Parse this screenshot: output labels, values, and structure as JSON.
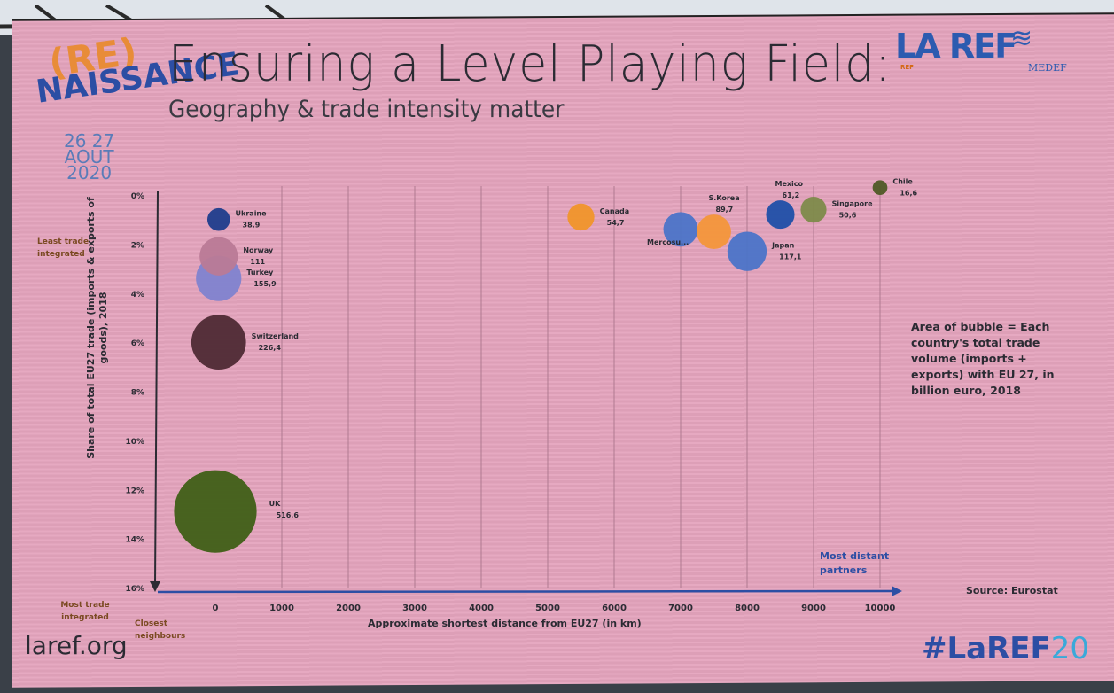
{
  "slide": {
    "title": "Ensuring a Level Playing Field:",
    "subtitle": "Geography & trade intensity matter",
    "logo_left": {
      "re": "(RE)",
      "naissance": "NAISSANCE",
      "dates": "26 27\nAOUT\n2020"
    },
    "logo_right_1": "LA REF",
    "logo_right_1_small": "REF",
    "logo_right_2": "MEDEF",
    "website": "laref.org",
    "hashtag_main": "#LaREF",
    "hashtag_num": "20",
    "note": "Area of bubble = Each country's total trade volume (imports + exports) with EU 27, in billion euro, 2018",
    "source": "Source: Eurostat",
    "least_integrated": "Least trade integrated",
    "most_integrated": "Most trade integrated",
    "closest": "Closest neighbours",
    "most_distant": "Most distant partners"
  },
  "chart_data": {
    "type": "scatter",
    "title": "",
    "xlabel": "Approximate shortest distance from EU27 (in km)",
    "ylabel": "Share of total EU27 trade (imports & exports of goods), 2018",
    "xlim": [
      -900,
      10200
    ],
    "ylim": [
      0,
      16
    ],
    "y_inverted": true,
    "x_ticks": [
      "0",
      "1000",
      "2000",
      "3000",
      "4000",
      "5000",
      "6000",
      "7000",
      "8000",
      "9000",
      "10000"
    ],
    "y_ticks": [
      "0%",
      "2%",
      "4%",
      "6%",
      "8%",
      "10%",
      "12%",
      "14%",
      "16%"
    ],
    "grid": "vertical",
    "points": [
      {
        "name": "Ukraine",
        "x": 50,
        "y": 1.0,
        "size": "38,9",
        "size_num": 38.9,
        "color": "#1f3d8c",
        "label_pos": "right"
      },
      {
        "name": "Norway",
        "x": 50,
        "y": 2.5,
        "size": "111",
        "size_num": 111,
        "color": "#b97a96",
        "label_pos": "right"
      },
      {
        "name": "Turkey",
        "x": 50,
        "y": 3.4,
        "size": "155,9",
        "size_num": 155.9,
        "color": "#7f83cf",
        "label_pos": "right"
      },
      {
        "name": "Switzerland",
        "x": 50,
        "y": 6.0,
        "size": "226,4",
        "size_num": 226.4,
        "color": "#4e2a34",
        "label_pos": "right"
      },
      {
        "name": "UK",
        "x": 0,
        "y": 12.9,
        "size": "516,6",
        "size_num": 516.6,
        "color": "#3f5f16",
        "label_pos": "right"
      },
      {
        "name": "Canada",
        "x": 5500,
        "y": 0.9,
        "size": "54,7",
        "size_num": 54.7,
        "color": "#f0952a",
        "label_pos": "right"
      },
      {
        "name": "Mercosur",
        "x": 7000,
        "y": 1.4,
        "size": "",
        "size_num": 90.0,
        "color": "#4b74c8",
        "label_pos": "below-left"
      },
      {
        "name": "S.Korea",
        "x": 7500,
        "y": 1.5,
        "size": "89,7",
        "size_num": 89.7,
        "color": "#f3963a",
        "label_pos": "above"
      },
      {
        "name": "Japan",
        "x": 8000,
        "y": 2.3,
        "size": "117,1",
        "size_num": 117.1,
        "color": "#4b74c8",
        "label_pos": "right"
      },
      {
        "name": "Mexico",
        "x": 8500,
        "y": 0.8,
        "size": "61,2",
        "size_num": 61.2,
        "color": "#1f4fa8",
        "label_pos": "above"
      },
      {
        "name": "Singapore",
        "x": 9000,
        "y": 0.6,
        "size": "50,6",
        "size_num": 50.6,
        "color": "#7d8a4a",
        "label_pos": "right"
      },
      {
        "name": "Chile",
        "x": 10000,
        "y": -0.3,
        "size": "16,6",
        "size_num": 16.6,
        "color": "#4f5a26",
        "label_pos": "right"
      }
    ]
  }
}
